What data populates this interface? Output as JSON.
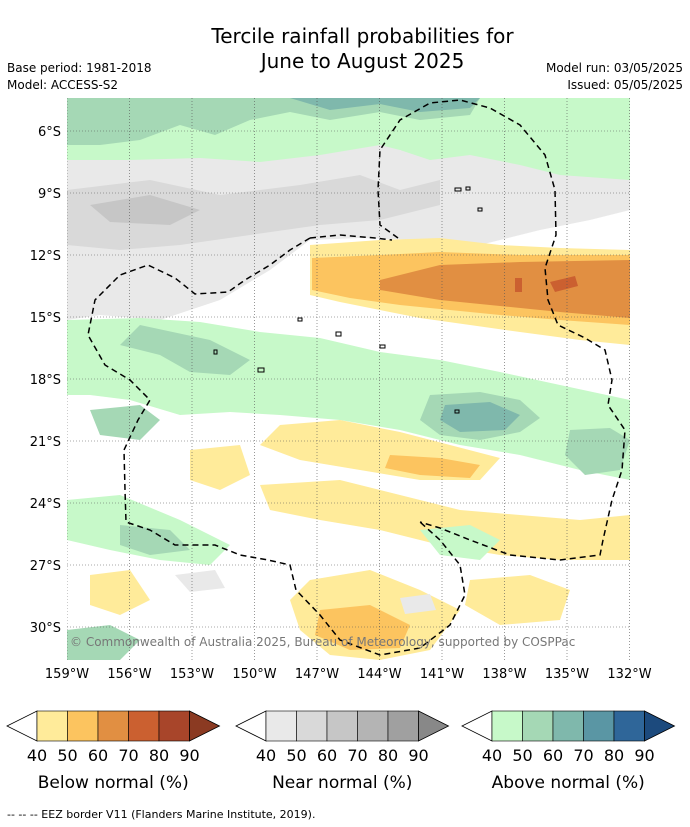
{
  "title_line1": "Tercile rainfall probabilities for",
  "title_line2": "June to August 2025",
  "base_period": "Base period: 1981-2018",
  "model": "Model: ACCESS-S2",
  "model_run": "Model run: 03/05/2025",
  "issued": "Issued: 05/05/2025",
  "copyright": "© Commonwealth of Australia 2025, Bureau of Meteorology, supported by COSPPac",
  "lat_labels": [
    "6°S",
    "9°S",
    "12°S",
    "15°S",
    "18°S",
    "21°S",
    "24°S",
    "27°S",
    "30°S"
  ],
  "lon_labels": [
    "159°W",
    "156°W",
    "153°W",
    "150°W",
    "147°W",
    "144°W",
    "141°W",
    "138°W",
    "135°W",
    "132°W"
  ],
  "colorbars": [
    {
      "label": "Below normal (%)",
      "colors": [
        "#ffeb9a",
        "#fcc45f",
        "#e18f42",
        "#cb6030",
        "#a8452a",
        "#8b3a22"
      ],
      "ticks": [
        "40",
        "50",
        "60",
        "70",
        "80",
        "90"
      ]
    },
    {
      "label": "Near normal (%)",
      "colors": [
        "#e9e9e9",
        "#d9d9d9",
        "#c6c6c6",
        "#b4b4b4",
        "#a0a0a0",
        "#888888"
      ],
      "ticks": [
        "40",
        "50",
        "60",
        "70",
        "80",
        "90"
      ]
    },
    {
      "label": "Above normal (%)",
      "colors": [
        "#c7f9c9",
        "#a5d8b5",
        "#7fb8ac",
        "#5a96a4",
        "#2f6699",
        "#1c4a7d"
      ],
      "ticks": [
        "40",
        "50",
        "60",
        "70",
        "80",
        "90"
      ]
    }
  ],
  "footer": "-- -- -- EEZ border V11 (Flanders Marine Institute, 2019)."
}
